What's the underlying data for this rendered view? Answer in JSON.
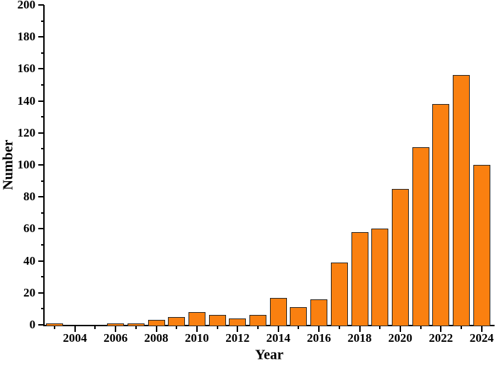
{
  "figure": {
    "background_color": "#ffffff",
    "axis_color": "#000000",
    "text_color": "#000000"
  },
  "chart_data": {
    "type": "bar",
    "title": "",
    "xlabel": "Year",
    "ylabel": "Number",
    "categories": [
      "2003",
      "2004",
      "2005",
      "2006",
      "2007",
      "2008",
      "2009",
      "2010",
      "2011",
      "2012",
      "2013",
      "2014",
      "2015",
      "2016",
      "2017",
      "2018",
      "2019",
      "2020",
      "2021",
      "2022",
      "2023",
      "2024"
    ],
    "values": [
      1,
      0,
      0,
      1,
      1,
      3,
      5,
      8,
      6,
      4,
      6,
      17,
      11,
      16,
      39,
      58,
      60,
      85,
      111,
      138,
      156,
      100
    ],
    "ylim": [
      0,
      200
    ],
    "y_major_step": 20,
    "y_minor_step": 10,
    "y_tick_labels": [
      "0",
      "20",
      "40",
      "60",
      "80",
      "100",
      "120",
      "140",
      "160",
      "180",
      "200"
    ],
    "x_tick_labels": [
      "2004",
      "2006",
      "2008",
      "2010",
      "2012",
      "2014",
      "2016",
      "2018",
      "2020",
      "2022",
      "2024"
    ],
    "x_label_every": 2,
    "grid": "off",
    "legend": "none",
    "bar_color": "#FA8010",
    "bar_border_color": "#262626",
    "bar_width_ratio": 0.84
  }
}
